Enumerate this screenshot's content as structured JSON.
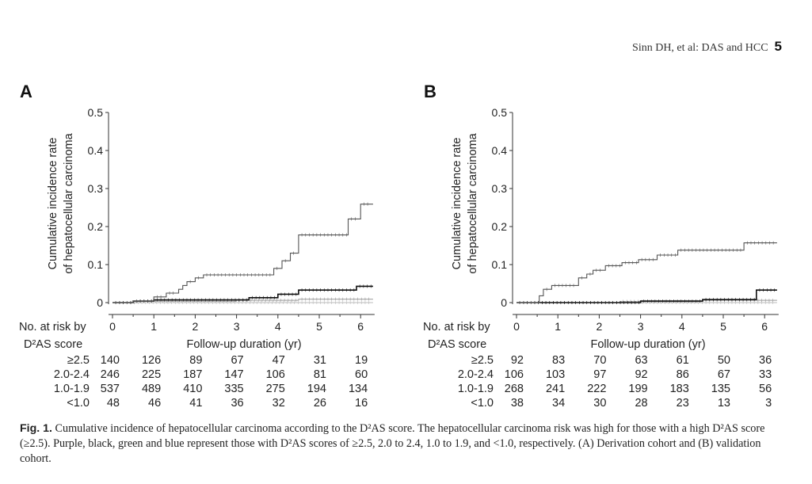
{
  "header": {
    "running_title": "Sinn DH, et al: DAS and HCC",
    "page_number": "5"
  },
  "chart_data": [
    {
      "panel": "A",
      "type": "line",
      "ylabel": [
        "Cumulative incidence rate",
        "of hepatocellular carcinoma"
      ],
      "xlabel": "Follow-up duration (yr)",
      "ylim": [
        0,
        0.5
      ],
      "xlim": [
        0,
        6.3
      ],
      "yticks": [
        "0",
        "0.1",
        "0.2",
        "0.3",
        "0.4",
        "0.5"
      ],
      "xticks": [
        "0",
        "1",
        "2",
        "3",
        "4",
        "5",
        "6"
      ],
      "grid": false,
      "series": [
        {
          "color": "#555555",
          "width": 1.1,
          "points": [
            [
              0,
              0
            ],
            [
              0.5,
              0
            ],
            [
              0.5,
              0.004
            ],
            [
              1.0,
              0.004
            ],
            [
              1.0,
              0.015
            ],
            [
              1.3,
              0.015
            ],
            [
              1.3,
              0.025
            ],
            [
              1.6,
              0.025
            ],
            [
              1.6,
              0.035
            ],
            [
              1.7,
              0.035
            ],
            [
              1.7,
              0.045
            ],
            [
              1.8,
              0.045
            ],
            [
              1.8,
              0.055
            ],
            [
              2.0,
              0.055
            ],
            [
              2.0,
              0.065
            ],
            [
              2.2,
              0.065
            ],
            [
              2.2,
              0.073
            ],
            [
              3.9,
              0.073
            ],
            [
              3.9,
              0.09
            ],
            [
              4.1,
              0.09
            ],
            [
              4.1,
              0.11
            ],
            [
              4.3,
              0.11
            ],
            [
              4.3,
              0.13
            ],
            [
              4.5,
              0.13
            ],
            [
              4.5,
              0.178
            ],
            [
              5.7,
              0.178
            ],
            [
              5.7,
              0.22
            ],
            [
              6.0,
              0.22
            ],
            [
              6.0,
              0.259
            ],
            [
              6.3,
              0.259
            ]
          ]
        },
        {
          "color": "#111111",
          "width": 1.6,
          "points": [
            [
              0,
              0
            ],
            [
              0.5,
              0
            ],
            [
              0.5,
              0.004
            ],
            [
              1.0,
              0.004
            ],
            [
              1.0,
              0.007
            ],
            [
              3.3,
              0.007
            ],
            [
              3.3,
              0.013
            ],
            [
              4.0,
              0.013
            ],
            [
              4.0,
              0.022
            ],
            [
              4.5,
              0.022
            ],
            [
              4.5,
              0.033
            ],
            [
              5.9,
              0.033
            ],
            [
              5.9,
              0.043
            ],
            [
              6.3,
              0.043
            ]
          ]
        },
        {
          "color": "#999999",
          "width": 1.0,
          "points": [
            [
              0,
              0
            ],
            [
              0.6,
              0
            ],
            [
              0.6,
              0.004
            ],
            [
              3.0,
              0.004
            ],
            [
              3.0,
              0.006
            ],
            [
              4.5,
              0.006
            ],
            [
              4.5,
              0.009
            ],
            [
              6.3,
              0.009
            ]
          ]
        },
        {
          "color": "#bbbbbb",
          "width": 0.9,
          "points": [
            [
              0,
              0
            ],
            [
              6.3,
              0
            ]
          ]
        }
      ],
      "risk_table": {
        "title": [
          "No. at risk by",
          "D²AS score"
        ],
        "rows": [
          {
            "label": "≥2.5",
            "values": [
              "140",
              "126",
              "89",
              "67",
              "47",
              "31",
              "19"
            ]
          },
          {
            "label": "2.0-2.4",
            "values": [
              "246",
              "225",
              "187",
              "147",
              "106",
              "81",
              "60"
            ]
          },
          {
            "label": "1.0-1.9",
            "values": [
              "537",
              "489",
              "410",
              "335",
              "275",
              "194",
              "134"
            ]
          },
          {
            "label": "<1.0",
            "values": [
              "48",
              "46",
              "41",
              "36",
              "32",
              "26",
              "16"
            ]
          }
        ]
      }
    },
    {
      "panel": "B",
      "type": "line",
      "ylabel": [
        "Cumulative incidence rate",
        "of hepatocellular carcinoma"
      ],
      "xlabel": "Follow-up duration (yr)",
      "ylim": [
        0,
        0.5
      ],
      "xlim": [
        0,
        6.3
      ],
      "yticks": [
        "0",
        "0.1",
        "0.2",
        "0.3",
        "0.4",
        "0.5"
      ],
      "xticks": [
        "0",
        "1",
        "2",
        "3",
        "4",
        "5",
        "6"
      ],
      "grid": false,
      "series": [
        {
          "color": "#555555",
          "width": 1.1,
          "points": [
            [
              0,
              0
            ],
            [
              0.55,
              0
            ],
            [
              0.55,
              0.018
            ],
            [
              0.65,
              0.018
            ],
            [
              0.65,
              0.035
            ],
            [
              0.85,
              0.035
            ],
            [
              0.85,
              0.045
            ],
            [
              1.5,
              0.045
            ],
            [
              1.5,
              0.065
            ],
            [
              1.7,
              0.065
            ],
            [
              1.7,
              0.075
            ],
            [
              1.85,
              0.075
            ],
            [
              1.85,
              0.085
            ],
            [
              2.15,
              0.085
            ],
            [
              2.15,
              0.097
            ],
            [
              2.55,
              0.097
            ],
            [
              2.55,
              0.105
            ],
            [
              2.95,
              0.105
            ],
            [
              2.95,
              0.113
            ],
            [
              3.4,
              0.113
            ],
            [
              3.4,
              0.125
            ],
            [
              3.9,
              0.125
            ],
            [
              3.9,
              0.138
            ],
            [
              5.5,
              0.138
            ],
            [
              5.5,
              0.157
            ],
            [
              6.3,
              0.157
            ]
          ]
        },
        {
          "color": "#111111",
          "width": 1.6,
          "points": [
            [
              0,
              0
            ],
            [
              3.0,
              0
            ],
            [
              3.0,
              0.004
            ],
            [
              4.5,
              0.004
            ],
            [
              4.5,
              0.008
            ],
            [
              5.8,
              0.008
            ],
            [
              5.8,
              0.033
            ],
            [
              6.3,
              0.033
            ]
          ]
        },
        {
          "color": "#999999",
          "width": 1.0,
          "points": [
            [
              0,
              0
            ],
            [
              2.5,
              0
            ],
            [
              2.5,
              0.003
            ],
            [
              4.5,
              0.003
            ],
            [
              4.5,
              0.006
            ],
            [
              6.3,
              0.006
            ]
          ]
        },
        {
          "color": "#bbbbbb",
          "width": 0.9,
          "points": [
            [
              0,
              0
            ],
            [
              6.3,
              0
            ]
          ]
        }
      ],
      "risk_table": {
        "title": [
          "No. at risk by",
          "D²AS score"
        ],
        "rows": [
          {
            "label": "≥2.5",
            "values": [
              "92",
              "83",
              "70",
              "63",
              "61",
              "50",
              "36"
            ]
          },
          {
            "label": "2.0-2.4",
            "values": [
              "106",
              "103",
              "97",
              "92",
              "86",
              "67",
              "33"
            ]
          },
          {
            "label": "1.0-1.9",
            "values": [
              "268",
              "241",
              "222",
              "199",
              "183",
              "135",
              "56"
            ]
          },
          {
            "label": "<1.0",
            "values": [
              "38",
              "34",
              "30",
              "28",
              "23",
              "13",
              "3"
            ]
          }
        ]
      }
    }
  ],
  "caption": {
    "fig_label": "Fig. 1.",
    "text": " Cumulative incidence of hepatocellular carcinoma according to the D²AS score. The hepatocellular carcinoma risk was high for those with a high D²AS score (≥2.5). Purple, black, green and blue represent those with D²AS scores of ≥2.5, 2.0 to 2.4, 1.0 to 1.9, and <1.0, respectively. (A) Derivation cohort and (B) validation cohort."
  }
}
